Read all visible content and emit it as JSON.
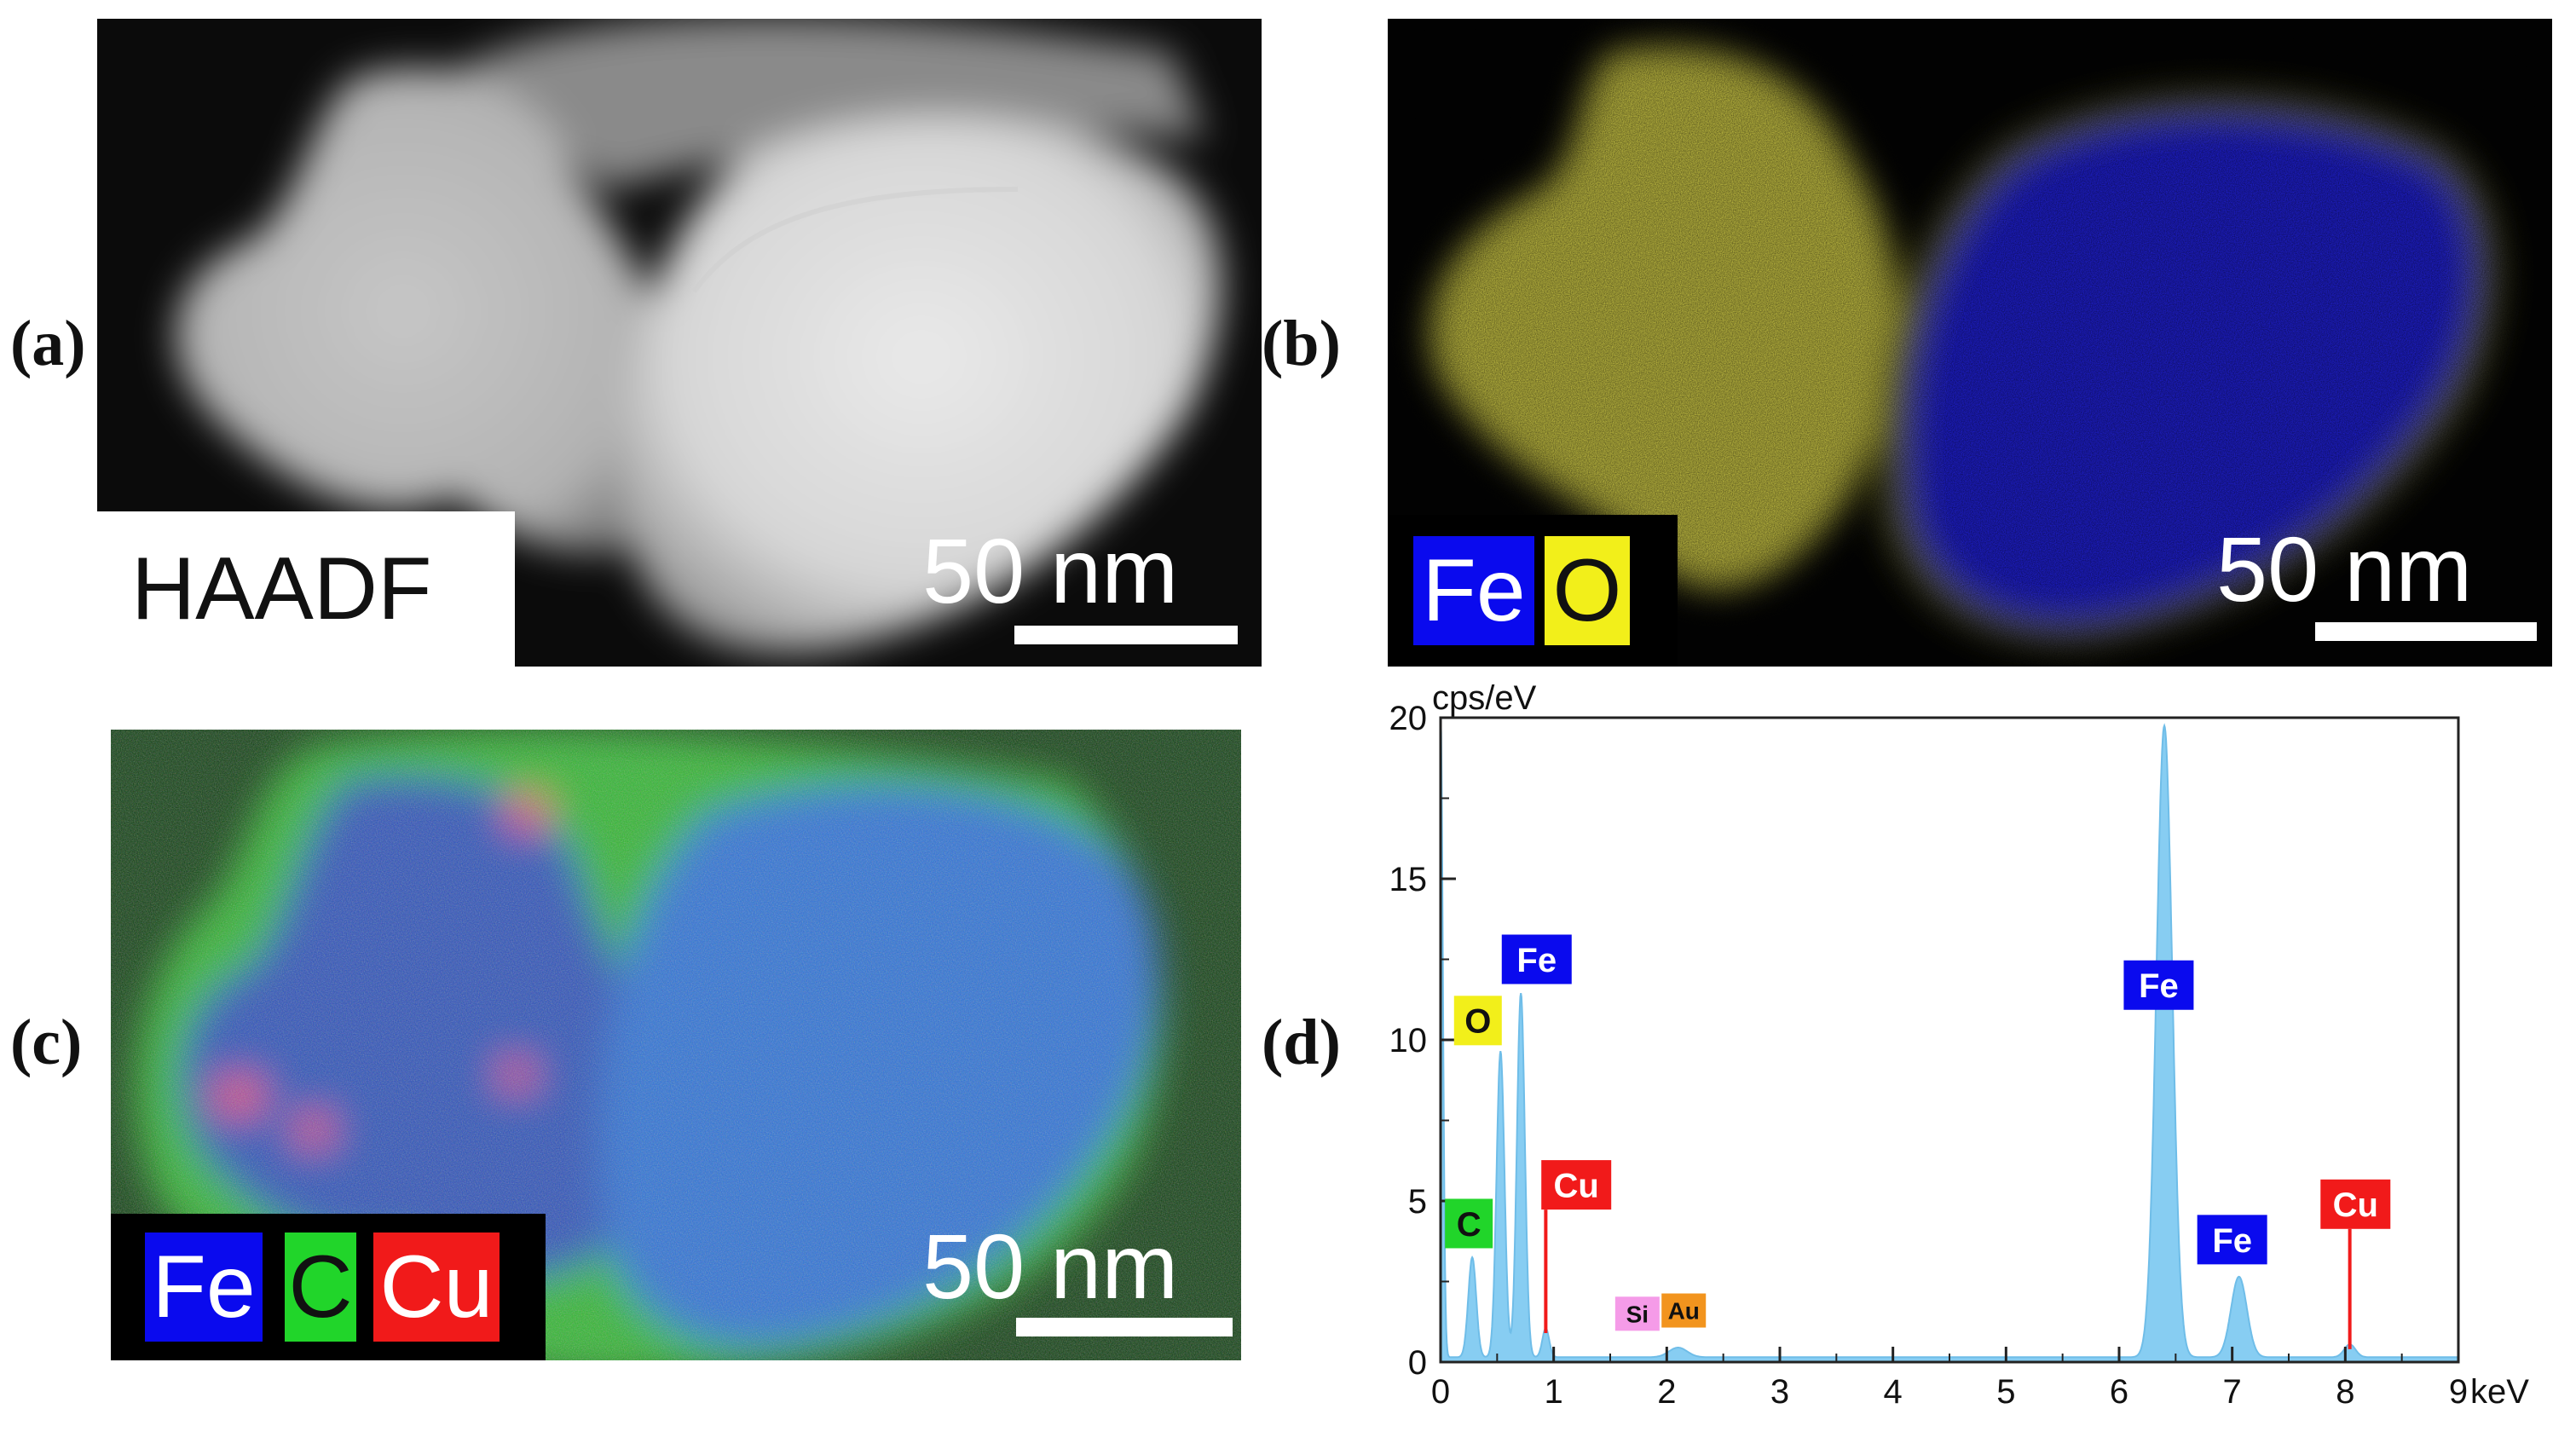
{
  "panels": {
    "a": {
      "letter": "(a)",
      "label": "HAADF",
      "scale": "50 nm"
    },
    "b": {
      "letter": "(b)",
      "scale": "50 nm",
      "legend": [
        {
          "text": "Fe",
          "bg": "#0a0aee",
          "fg": "#ffffff"
        },
        {
          "text": "O",
          "bg": "#f2ef1a",
          "fg": "#111111"
        }
      ]
    },
    "c": {
      "letter": "(c)",
      "scale": "50 nm",
      "legend": [
        {
          "text": "Fe",
          "bg": "#0a0aee",
          "fg": "#ffffff"
        },
        {
          "text": "C",
          "bg": "#21d52a",
          "fg": "#111111"
        },
        {
          "text": "Cu",
          "bg": "#f11a1a",
          "fg": "#ffffff"
        }
      ]
    },
    "d": {
      "letter": "(d)"
    }
  },
  "colors": {
    "fe": "#0a0aee",
    "o": "#f2ef1a",
    "c": "#21d52a",
    "cu": "#f11a1a",
    "si": "#f59be8",
    "au": "#f2941e",
    "spectrum": "#87cdf2"
  },
  "chart_data": {
    "type": "area",
    "ylabel": "cps/eV",
    "xlabel": "keV",
    "xlim": [
      0,
      9
    ],
    "ylim": [
      0,
      20
    ],
    "xticks": [
      "0",
      "1",
      "2",
      "3",
      "4",
      "5",
      "6",
      "7",
      "8",
      "9"
    ],
    "yticks": [
      "0",
      "5",
      "10",
      "15",
      "20"
    ],
    "peaks": [
      {
        "x": 0.0,
        "y": 20,
        "w": 0.02
      },
      {
        "x": 0.28,
        "y": 3.1,
        "w": 0.035
      },
      {
        "x": 0.53,
        "y": 9.5,
        "w": 0.035
      },
      {
        "x": 0.71,
        "y": 11.3,
        "w": 0.035
      },
      {
        "x": 0.93,
        "y": 0.9,
        "w": 0.03
      },
      {
        "x": 2.1,
        "y": 0.3,
        "w": 0.08
      },
      {
        "x": 6.4,
        "y": 19.6,
        "w": 0.07
      },
      {
        "x": 7.06,
        "y": 2.5,
        "w": 0.07
      },
      {
        "x": 8.04,
        "y": 0.4,
        "w": 0.05
      }
    ],
    "background": 0.15,
    "annotations": [
      {
        "text": "Fe",
        "x": 0.85,
        "y": 12.5,
        "color": "fe",
        "fg": "#ffffff"
      },
      {
        "text": "O",
        "x": 0.33,
        "y": 10.6,
        "color": "o",
        "fg": "#111111"
      },
      {
        "text": "C",
        "x": 0.25,
        "y": 4.3,
        "color": "c",
        "fg": "#111111"
      },
      {
        "text": "Cu",
        "x": 1.2,
        "y": 5.5,
        "color": "cu",
        "fg": "#ffffff",
        "line_x": 0.93,
        "line_to": 0.9
      },
      {
        "text": "Si",
        "x": 1.74,
        "y": 1.5,
        "color": "si",
        "fg": "#111111",
        "small": true
      },
      {
        "text": "Au",
        "x": 2.15,
        "y": 1.6,
        "color": "au",
        "fg": "#111111",
        "small": true
      },
      {
        "text": "Fe",
        "x": 6.35,
        "y": 11.7,
        "color": "fe",
        "fg": "#ffffff"
      },
      {
        "text": "Fe",
        "x": 7.0,
        "y": 3.8,
        "color": "fe",
        "fg": "#ffffff"
      },
      {
        "text": "Cu",
        "x": 8.09,
        "y": 4.9,
        "color": "cu",
        "fg": "#ffffff",
        "line_x": 8.04,
        "line_to": 0.4
      }
    ]
  }
}
